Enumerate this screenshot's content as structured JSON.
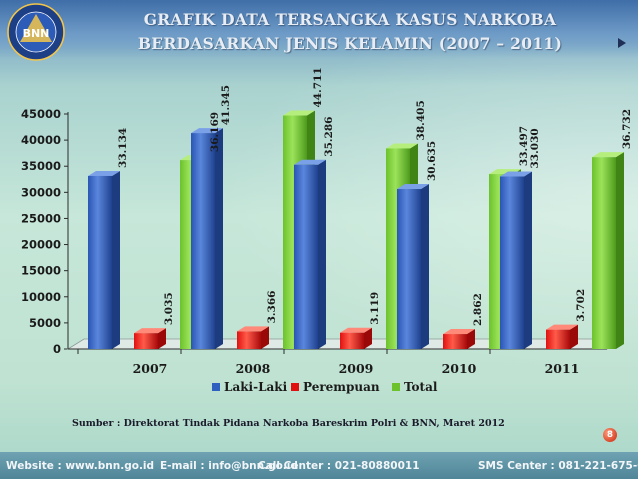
{
  "title": {
    "line1": "GRAFIK DATA TERSANGKA KASUS NARKOBA",
    "line2": "BERDASARKAN JENIS KELAMIN (2007 – 2011)"
  },
  "logo": {
    "text": "BNN",
    "ring_text": "BADAN NARKOTIKA NASIONAL REPUBLIK INDONESIA"
  },
  "chart_data": {
    "type": "bar",
    "categories": [
      "2007",
      "2008",
      "2009",
      "2010",
      "2011"
    ],
    "series": [
      {
        "name": "Laki-Laki",
        "color": "#2f5fbf",
        "values": [
          33134,
          41345,
          35286,
          30635,
          33030
        ],
        "labels": [
          "33.134",
          "41.345",
          "35.286",
          "30.635",
          "33.030"
        ]
      },
      {
        "name": "Perempuan",
        "color": "#e01010",
        "values": [
          3035,
          3366,
          3119,
          2862,
          3702
        ],
        "labels": [
          "3.035",
          "3.366",
          "3.119",
          "2.862",
          "3.702"
        ]
      },
      {
        "name": "Total",
        "color": "#6cc22c",
        "values": [
          36169,
          44711,
          38405,
          33497,
          36732
        ],
        "labels": [
          "36.169",
          "44.711",
          "38.405",
          "33.497",
          "36.732"
        ]
      }
    ],
    "ylim": [
      0,
      45000
    ],
    "yticks": [
      0,
      5000,
      10000,
      15000,
      20000,
      25000,
      30000,
      35000,
      40000,
      45000
    ],
    "xlabel": "",
    "ylabel": "",
    "legend_position": "bottom",
    "grid": false
  },
  "source": "Sumber : Direktorat Tindak Pidana Narkoba Bareskrim Polri & BNN, Maret 2012",
  "page_number": "8",
  "footer": {
    "website": "Website : www.bnn.go.id",
    "email": "E-mail : info@bnn.go.id",
    "call": "Call Center  : 021-80880011",
    "sms": "SMS Center : 081-221-675-675"
  }
}
